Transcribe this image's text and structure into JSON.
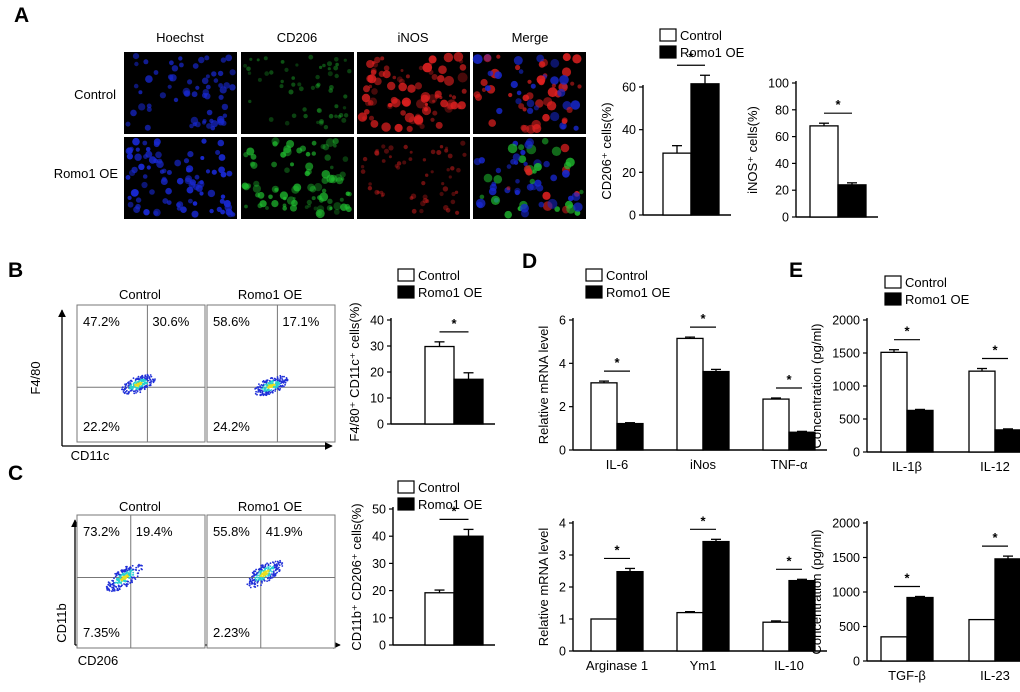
{
  "colors": {
    "control": "#ffffff",
    "romo": "#000000",
    "hoechst": "#1828d0",
    "cd206": "#20c030",
    "inos": "#e02020",
    "dot_low": "#2030d8",
    "dot_mid": "#28d0d0",
    "dot_high": "#e8e020"
  },
  "series_names": {
    "control": "Control",
    "romo": "Romo1 OE"
  },
  "panels": {
    "a": "A",
    "b": "B",
    "c": "C",
    "d": "D",
    "e": "E"
  },
  "microscopy": {
    "columns": [
      "Hoechst",
      "CD206",
      "iNOS",
      "Merge"
    ],
    "rows": [
      "Control",
      "Romo1 OE"
    ],
    "stains": [
      "hoechst",
      "cd206",
      "inos",
      "merge"
    ]
  },
  "flow_b": {
    "conditions": [
      "Control",
      "Romo1 OE"
    ],
    "xaxis": "CD11c",
    "yaxis": "F4/80",
    "quadrants": [
      {
        "ul": "47.2%",
        "ur": "30.6%",
        "ll": "22.2%"
      },
      {
        "ul": "58.6%",
        "ur": "17.1%",
        "ll": "24.2%"
      }
    ]
  },
  "flow_c": {
    "conditions": [
      "Control",
      "Romo1 OE"
    ],
    "xaxis": "CD206",
    "yaxis": "CD11b",
    "quadrants": [
      {
        "ul": "73.2%",
        "ur": "19.4%",
        "ll": "7.35%"
      },
      {
        "ul": "55.8%",
        "ur": "41.9%",
        "ll": "2.23%"
      }
    ]
  },
  "chart_data": [
    {
      "id": "a1",
      "type": "bar",
      "ylabel": "CD206⁺ cells(%)",
      "yticks": [
        "0",
        "20",
        "40",
        "60"
      ],
      "ylim": [
        0,
        70
      ],
      "categories": [
        ""
      ],
      "series": [
        {
          "name": "Control",
          "values": [
            29
          ],
          "errors": [
            3.5
          ]
        },
        {
          "name": "Romo1 OE",
          "values": [
            61.5
          ],
          "errors": [
            4
          ]
        }
      ],
      "significance": [
        {
          "from": 0,
          "to": 1,
          "label": "*"
        }
      ],
      "legend": "top"
    },
    {
      "id": "a2",
      "type": "bar",
      "ylabel": "iNOS⁺ cells(%)",
      "yticks": [
        "0",
        "20",
        "40",
        "60",
        "80",
        "100"
      ],
      "ylim": [
        0,
        100
      ],
      "categories": [
        ""
      ],
      "series": [
        {
          "name": "Control",
          "values": [
            68
          ],
          "errors": [
            2
          ]
        },
        {
          "name": "Romo1 OE",
          "values": [
            24
          ],
          "errors": [
            1.5
          ]
        }
      ],
      "significance": [
        {
          "from": 0,
          "to": 1,
          "label": "*"
        }
      ]
    },
    {
      "id": "b",
      "type": "bar",
      "ylabel": "F4/80⁺ CD11c⁺ cells(%)",
      "yticks": [
        "0",
        "10",
        "20",
        "30",
        "40"
      ],
      "ylim": [
        0,
        40
      ],
      "categories": [
        ""
      ],
      "series": [
        {
          "name": "Control",
          "values": [
            29.8
          ],
          "errors": [
            1.8
          ]
        },
        {
          "name": "Romo1 OE",
          "values": [
            17.2
          ],
          "errors": [
            2.5
          ]
        }
      ],
      "significance": [
        {
          "from": 0,
          "to": 1,
          "label": "*"
        }
      ],
      "legend": "top"
    },
    {
      "id": "c",
      "type": "bar",
      "ylabel": "CD11b⁺ CD206⁺ cells(%)",
      "yticks": [
        "0",
        "10",
        "20",
        "30",
        "40",
        "50"
      ],
      "ylim": [
        0,
        50
      ],
      "categories": [
        ""
      ],
      "series": [
        {
          "name": "Control",
          "values": [
            19.2
          ],
          "errors": [
            1
          ]
        },
        {
          "name": "Romo1 OE",
          "values": [
            40
          ],
          "errors": [
            2.5
          ]
        }
      ],
      "significance": [
        {
          "from": 0,
          "to": 1,
          "label": "*"
        }
      ],
      "legend": "top"
    },
    {
      "id": "d1",
      "type": "bar",
      "ylabel": "Relative mRNA level",
      "yticks": [
        "0",
        "2",
        "4",
        "6"
      ],
      "ylim": [
        0,
        6
      ],
      "categories": [
        "IL-6",
        "iNos",
        "TNF-α"
      ],
      "series": [
        {
          "name": "Control",
          "values": [
            3.1,
            5.15,
            2.35
          ],
          "errors": [
            0.08,
            0.06,
            0.05
          ]
        },
        {
          "name": "Romo1 OE",
          "values": [
            1.22,
            3.62,
            0.82
          ],
          "errors": [
            0.04,
            0.1,
            0.04
          ]
        }
      ],
      "significance": [
        {
          "from": 0,
          "to": 1,
          "label": "*"
        },
        {
          "from": 0,
          "to": 1,
          "label": "*"
        },
        {
          "from": 0,
          "to": 1,
          "label": "*"
        }
      ],
      "legend": "top"
    },
    {
      "id": "d2",
      "type": "bar",
      "ylabel": "Relative mRNA level",
      "yticks": [
        "0",
        "1",
        "2",
        "3",
        "4"
      ],
      "ylim": [
        0,
        4
      ],
      "categories": [
        "Arginase 1",
        "Ym1",
        "IL-10"
      ],
      "series": [
        {
          "name": "Control",
          "values": [
            1,
            1.2,
            0.9
          ],
          "errors": [
            0,
            0.03,
            0.04
          ]
        },
        {
          "name": "Romo1 OE",
          "values": [
            2.48,
            3.42,
            2.2
          ],
          "errors": [
            0.1,
            0.07,
            0.04
          ]
        }
      ],
      "significance": [
        {
          "from": 0,
          "to": 1,
          "label": "*"
        },
        {
          "from": 0,
          "to": 1,
          "label": "*"
        },
        {
          "from": 0,
          "to": 1,
          "label": "*"
        }
      ]
    },
    {
      "id": "e1",
      "type": "bar",
      "ylabel": "Concentration (pg/ml)",
      "yticks": [
        "0",
        "500",
        "1000",
        "1500",
        "2000"
      ],
      "ylim": [
        0,
        2000
      ],
      "categories": [
        "IL-1β",
        "IL-12"
      ],
      "series": [
        {
          "name": "Control",
          "values": [
            1510,
            1225
          ],
          "errors": [
            40,
            40
          ]
        },
        {
          "name": "Romo1 OE",
          "values": [
            630,
            335
          ],
          "errors": [
            15,
            15
          ]
        }
      ],
      "significance": [
        {
          "from": 0,
          "to": 1,
          "label": "*"
        },
        {
          "from": 0,
          "to": 1,
          "label": "*"
        }
      ],
      "legend": "top"
    },
    {
      "id": "e2",
      "type": "bar",
      "ylabel": "Concentration (pg/ml)",
      "yticks": [
        "0",
        "500",
        "1000",
        "1500",
        "2000"
      ],
      "ylim": [
        0,
        2000
      ],
      "categories": [
        "TGF-β",
        "IL-23"
      ],
      "series": [
        {
          "name": "Control",
          "values": [
            350,
            600
          ],
          "errors": [
            0,
            0
          ]
        },
        {
          "name": "Romo1 OE",
          "values": [
            920,
            1480
          ],
          "errors": [
            15,
            40
          ]
        }
      ],
      "significance": [
        {
          "from": 0,
          "to": 1,
          "label": "*"
        },
        {
          "from": 0,
          "to": 1,
          "label": "*"
        }
      ]
    }
  ]
}
